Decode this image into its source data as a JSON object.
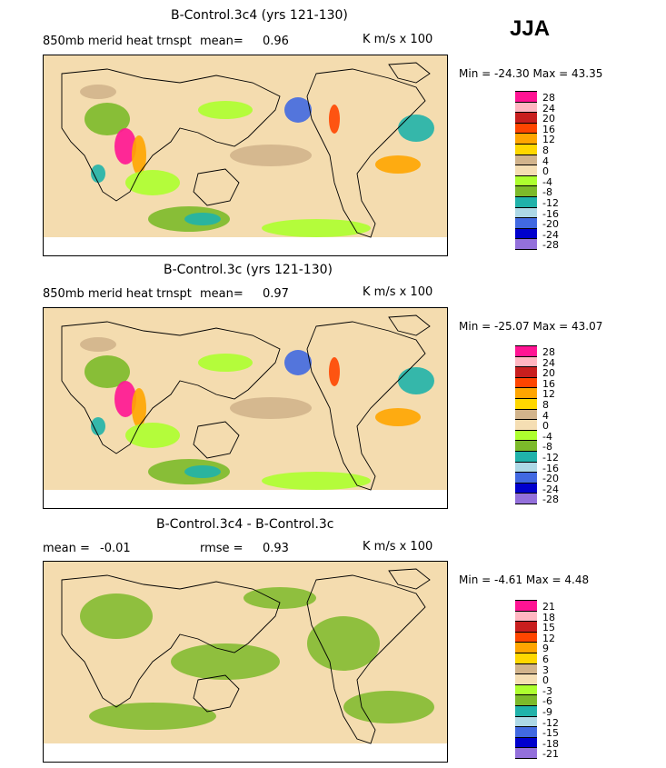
{
  "season": "JJA",
  "panels": [
    {
      "title": "B-Control.3c4 (yrs 121-130)",
      "variable": "850mb merid heat trnspt",
      "stat_label": "mean=",
      "stat_value": "0.96",
      "units": "K m/s x 100",
      "min_label": "Min =",
      "min_value": "-24.30",
      "max_label": "Max =",
      "max_value": "43.35",
      "levels": [
        "28",
        "24",
        "20",
        "16",
        "12",
        "8",
        "4",
        "0",
        "-4",
        "-8",
        "-12",
        "-16",
        "-20",
        "-24",
        "-28"
      ]
    },
    {
      "title": "B-Control.3c (yrs 121-130)",
      "variable": "850mb merid heat trnspt",
      "stat_label": "mean=",
      "stat_value": "0.97",
      "units": "K m/s x 100",
      "min_label": "Min =",
      "min_value": "-25.07",
      "max_label": "Max =",
      "max_value": "43.07",
      "levels": [
        "28",
        "24",
        "20",
        "16",
        "12",
        "8",
        "4",
        "0",
        "-4",
        "-8",
        "-12",
        "-16",
        "-20",
        "-24",
        "-28"
      ]
    },
    {
      "title": "B-Control.3c4 - B-Control.3c",
      "mean_label": "mean =",
      "mean_value": "-0.01",
      "rmse_label": "rmse =",
      "rmse_value": "0.93",
      "units": "K m/s x 100",
      "min_label": "Min =",
      "min_value": "-4.61",
      "max_label": "Max =",
      "max_value": "4.48",
      "levels": [
        "21",
        "18",
        "15",
        "12",
        "9",
        "6",
        "3",
        "0",
        "-3",
        "-6",
        "-9",
        "-12",
        "-15",
        "-18",
        "-21"
      ]
    }
  ],
  "legend_colors": [
    "#ff1493",
    "#ffb6c1",
    "#c81e1e",
    "#ff4500",
    "#ffa500",
    "#ffd700",
    "#d2b48c",
    "#f5deb3",
    "#adff2f",
    "#7cba2a",
    "#20b2aa",
    "#add8e6",
    "#4169e1",
    "#0000cd",
    "#9370db"
  ]
}
